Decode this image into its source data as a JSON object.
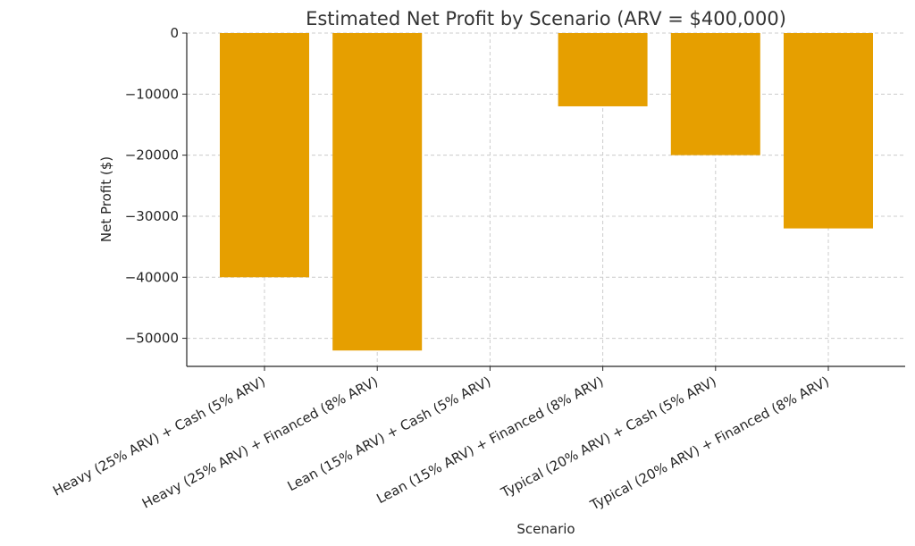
{
  "chart_data": {
    "type": "bar",
    "title": "Estimated Net Profit by Scenario (ARV = $400,000)",
    "xlabel": "Scenario",
    "ylabel": "Net Profit ($)",
    "categories": [
      "Heavy (25% ARV) + Cash (5% ARV)",
      "Heavy (25% ARV) + Financed (8% ARV)",
      "Lean (15% ARV) + Cash (5% ARV)",
      "Lean (15% ARV) + Financed (8% ARV)",
      "Typical (20% ARV) + Cash (5% ARV)",
      "Typical (20% ARV) + Financed (8% ARV)"
    ],
    "values": [
      -40000,
      -52000,
      0,
      -12000,
      -20000,
      -32000
    ],
    "ylim": [
      -54600,
      0
    ],
    "yticks": [
      0,
      -10000,
      -20000,
      -30000,
      -40000,
      -50000
    ],
    "grid": true,
    "bar_color": "#E69F00"
  }
}
